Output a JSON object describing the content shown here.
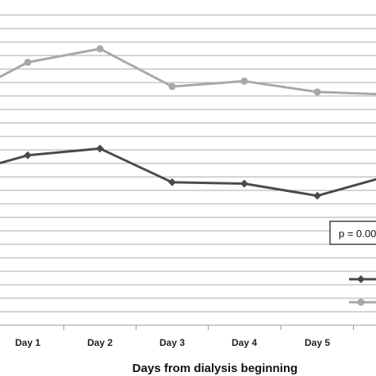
{
  "chart_data": {
    "type": "line",
    "categories": [
      "",
      "Day 1",
      "Day 2",
      "Day 3",
      "Day 4",
      "Day 5",
      ""
    ],
    "xlabel": "Days from dialysis beginning",
    "ylabel": "",
    "title": "",
    "ylim": [
      0,
      23
    ],
    "grid": true,
    "legend": "right",
    "series": [
      {
        "color": "#4a4a4a",
        "values": [
          11.1,
          12.6,
          13.1,
          10.6,
          10.5,
          9.6,
          11.1
        ]
      },
      {
        "color": "#a8a8a8",
        "values": [
          16.7,
          19.5,
          20.5,
          17.7,
          18.1,
          17.3,
          17.1
        ]
      }
    ],
    "annotation": {
      "text": "p = 0.00"
    }
  }
}
